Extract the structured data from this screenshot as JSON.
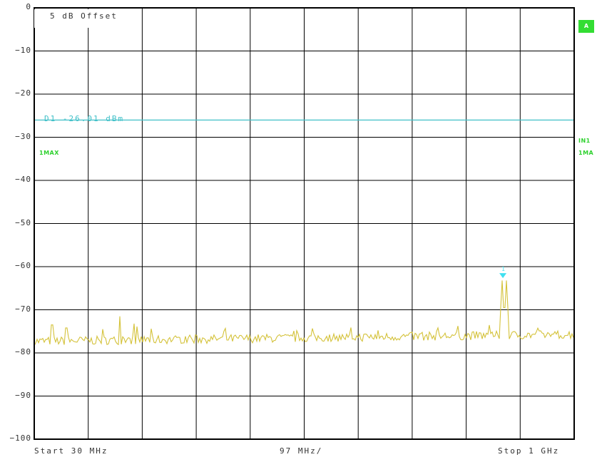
{
  "y_axis": {
    "ticks": [
      "0",
      "−10",
      "−20",
      "−30",
      "−40",
      "−50",
      "−60",
      "−70",
      "−80",
      "−90",
      "−100"
    ]
  },
  "x_axis": {
    "start_label": "Start 30 MHz",
    "span_label": "97 MHz/",
    "stop_label": "Stop 1 GHz"
  },
  "settings": {
    "offset_label": "5 dB Offset"
  },
  "display_line": {
    "label": "D1 -26.01 dBm",
    "level_db": -26.01
  },
  "badges": {
    "trace_left": "1MAX",
    "right_in": "IN1",
    "right_ma": "1MA",
    "screen": "A"
  },
  "marker": {
    "label": "1",
    "x_frac": 0.868,
    "level_db": -62.5
  },
  "colors": {
    "grid": "#000000",
    "trace": "#d4c23a",
    "display_line": "#40c0c8",
    "marker": "#40e0f0",
    "badge_green": "#33dd33"
  }
}
